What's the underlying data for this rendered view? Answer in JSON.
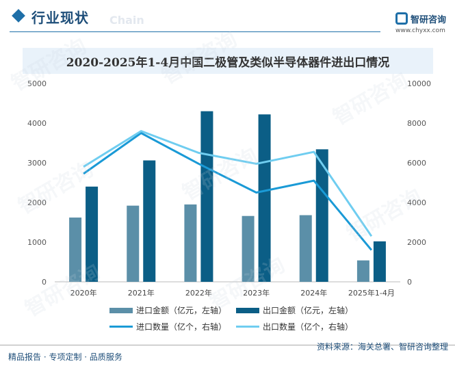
{
  "header": {
    "section_title": "行业现状",
    "section_watermark": "Chain",
    "logo_name": "智研咨询",
    "logo_url": "www.chyxx.com"
  },
  "footer": {
    "left_text": "精品报告 · 专项定制 · 品质服务",
    "source_text": "资料来源：海关总署、智研咨询整理"
  },
  "watermark_text": "智研咨询",
  "colors": {
    "import_amount": "#5b8fa8",
    "export_amount": "#0b5e86",
    "import_qty": "#1a9ad6",
    "export_qty": "#6fcdf0"
  },
  "chart_data": {
    "type": "bar",
    "title": "2020-2025年1-4月中国二极管及类似半导体器件进出口情况",
    "categories": [
      "2020年",
      "2021年",
      "2022年",
      "2023年",
      "2024年",
      "2025年1-4月"
    ],
    "y_left": {
      "ylim": [
        0,
        5000
      ],
      "ticks": [
        "0",
        "1000",
        "2000",
        "3000",
        "4000",
        "5000"
      ]
    },
    "y_right": {
      "ylim": [
        0,
        10000
      ],
      "ticks": [
        "0",
        "2000",
        "4000",
        "6000",
        "8000",
        "10000"
      ]
    },
    "series": [
      {
        "name": "进口金额（亿元，左轴）",
        "type": "bar",
        "axis": "left",
        "values": [
          1620,
          1920,
          1950,
          1660,
          1680,
          540
        ]
      },
      {
        "name": "出口金额（亿元，左轴）",
        "type": "bar",
        "axis": "left",
        "values": [
          2400,
          3060,
          4300,
          4220,
          3340,
          1020
        ]
      },
      {
        "name": "进口数量（亿个，右轴）",
        "type": "line",
        "axis": "right",
        "values": [
          5450,
          7500,
          5950,
          4500,
          5100,
          1600
        ]
      },
      {
        "name": "出口数量（亿个，右轴）",
        "type": "line",
        "axis": "right",
        "values": [
          5800,
          7600,
          6500,
          5950,
          6550,
          2300
        ]
      }
    ],
    "legend_position": "bottom",
    "grid": false
  }
}
